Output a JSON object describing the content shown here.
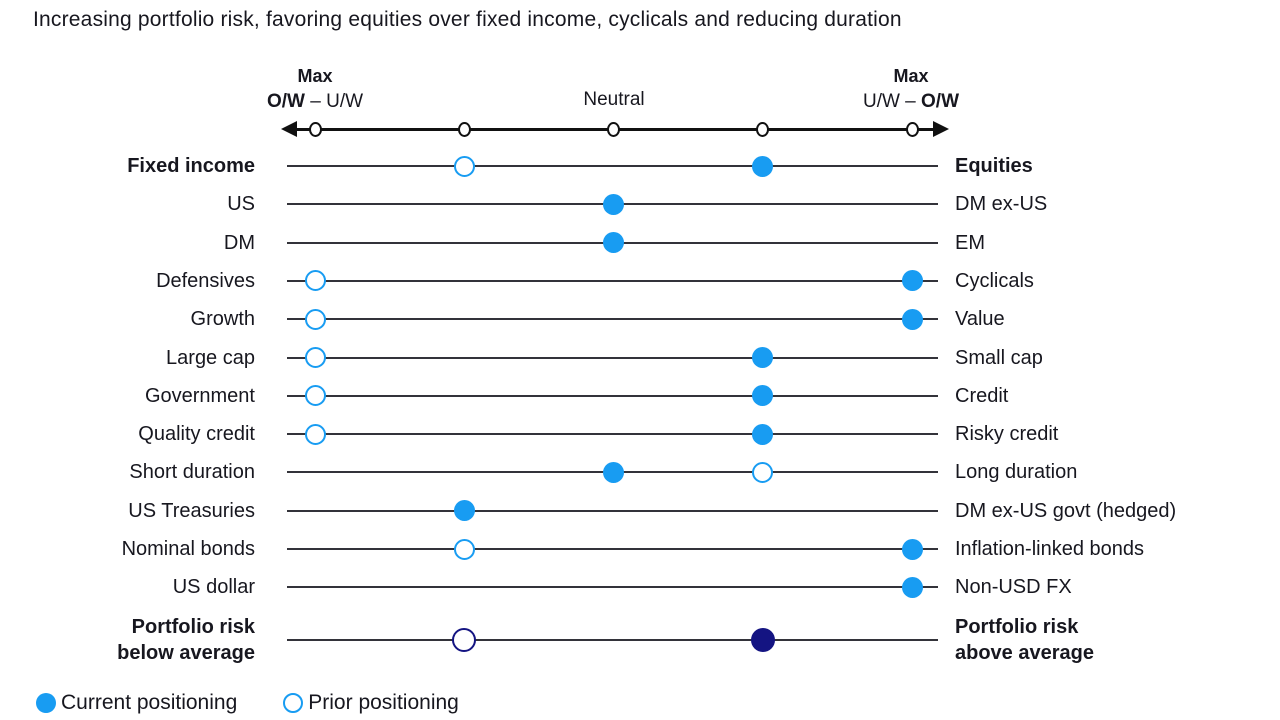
{
  "title": "Increasing portfolio risk, favoring equities over fixed income, cyclicals and reducing duration",
  "colors": {
    "current_dot": "#189cf2",
    "portfolio_risk_dot": "#141482",
    "row_line": "#33333a",
    "axis": "#111111",
    "text": "#17171f"
  },
  "axis": {
    "left": {
      "line1": "Max",
      "bold": "O/W",
      "rest": " – U/W"
    },
    "center": "Neutral",
    "right": {
      "line1": "Max",
      "rest": "U/W – ",
      "bold": "O/W"
    }
  },
  "legend": {
    "current_label": "Current positioning",
    "prior_label": "Prior positioning"
  },
  "chart_data": {
    "type": "scatter",
    "subtype": "positioning-dot-plot",
    "scale": {
      "ticks": 5,
      "tick_meaning_left_to_right": [
        "Max O/W left asset",
        "O/W left asset",
        "Neutral",
        "O/W right asset",
        "Max O/W right asset"
      ]
    },
    "rows": [
      {
        "left": "Fixed income",
        "right": "Equities",
        "bold": true,
        "prior": 2,
        "current": 4
      },
      {
        "left": "US",
        "right": "DM ex-US",
        "current": 3
      },
      {
        "left": "DM",
        "right": "EM",
        "current": 3
      },
      {
        "left": "Defensives",
        "right": "Cyclicals",
        "prior": 1,
        "current": 5
      },
      {
        "left": "Growth",
        "right": "Value",
        "prior": 1,
        "current": 5
      },
      {
        "left": "Large cap",
        "right": "Small cap",
        "prior": 1,
        "current": 4
      },
      {
        "left": "Government",
        "right": "Credit",
        "prior": 1,
        "current": 4
      },
      {
        "left": "Quality credit",
        "right": "Risky credit",
        "prior": 1,
        "current": 4
      },
      {
        "left": "Short duration",
        "right": "Long duration",
        "prior": 4,
        "current": 3
      },
      {
        "left": "US Treasuries",
        "right": "DM ex-US govt (hedged)",
        "current": 2
      },
      {
        "left": "Nominal bonds",
        "right": "Inflation-linked bonds",
        "prior": 2,
        "current": 5
      },
      {
        "left": "US dollar",
        "right": "Non-USD FX",
        "current": 5
      },
      {
        "left": "Portfolio risk\nbelow average",
        "right": "Portfolio risk\nabove average",
        "bold": true,
        "prior": 2,
        "current": 4,
        "variant": "navy"
      }
    ]
  }
}
